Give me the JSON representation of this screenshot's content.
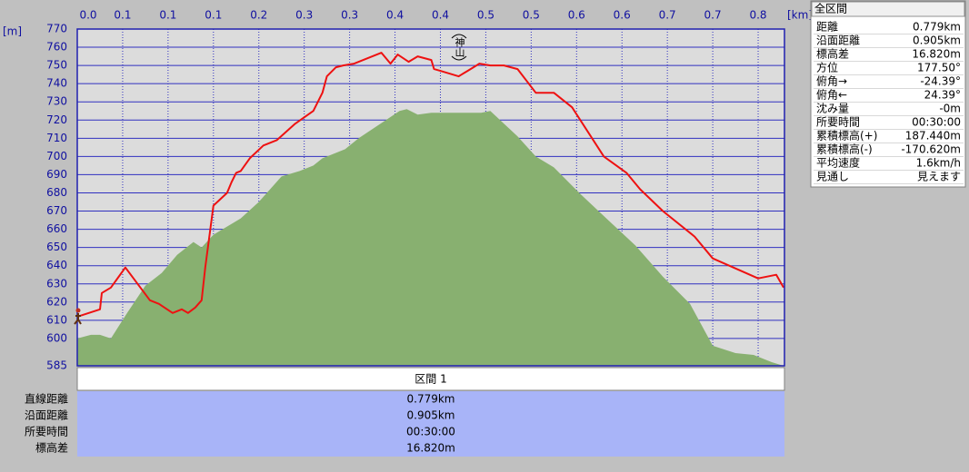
{
  "chart_data": {
    "type": "elevation-profile",
    "x_unit": "[km]",
    "y_unit": "[m]",
    "annotation": "神山",
    "xlim": [
      0,
      0.779
    ],
    "ylim": [
      585,
      770
    ],
    "xticks": [
      {
        "value": 0,
        "label": "0.0"
      },
      {
        "value": 0.05,
        "label": "0.1"
      },
      {
        "value": 0.1,
        "label": "0.1"
      },
      {
        "value": 0.15,
        "label": "0.1"
      },
      {
        "value": 0.2,
        "label": "0.2"
      },
      {
        "value": 0.25,
        "label": "0.3"
      },
      {
        "value": 0.3,
        "label": "0.3"
      },
      {
        "value": 0.35,
        "label": "0.4"
      },
      {
        "value": 0.4,
        "label": "0.4"
      },
      {
        "value": 0.45,
        "label": "0.5"
      },
      {
        "value": 0.5,
        "label": "0.5"
      },
      {
        "value": 0.55,
        "label": "0.6"
      },
      {
        "value": 0.6,
        "label": "0.6"
      },
      {
        "value": 0.65,
        "label": "0.7"
      },
      {
        "value": 0.7,
        "label": "0.7"
      },
      {
        "value": 0.75,
        "label": "0.8"
      }
    ],
    "yticks": [
      585,
      600,
      610,
      620,
      630,
      640,
      650,
      660,
      670,
      680,
      690,
      700,
      710,
      720,
      730,
      740,
      750,
      760,
      770
    ],
    "grid": true,
    "terrain": {
      "color": "#88b070",
      "x": [
        0,
        0.015,
        0.025,
        0.037,
        0.055,
        0.075,
        0.093,
        0.11,
        0.128,
        0.137,
        0.15,
        0.18,
        0.2,
        0.225,
        0.245,
        0.26,
        0.27,
        0.295,
        0.31,
        0.34,
        0.355,
        0.363,
        0.375,
        0.39,
        0.405,
        0.42,
        0.435,
        0.445,
        0.455,
        0.47,
        0.485,
        0.505,
        0.525,
        0.555,
        0.585,
        0.615,
        0.645,
        0.675,
        0.7,
        0.725,
        0.745,
        0.765,
        0.778
      ],
      "values": [
        600,
        602,
        602,
        600,
        614,
        629,
        636,
        646,
        653,
        650,
        657,
        666,
        675,
        689,
        692,
        695,
        699,
        704,
        710,
        720,
        725,
        726,
        723,
        724,
        724,
        724,
        724,
        724,
        725,
        718,
        711,
        700,
        694,
        679,
        665,
        651,
        634,
        619,
        596,
        592,
        591,
        587,
        585
      ]
    },
    "route": {
      "color": "#ee1111",
      "x": [
        0,
        0.025,
        0.027,
        0.037,
        0.053,
        0.08,
        0.09,
        0.105,
        0.115,
        0.122,
        0.13,
        0.137,
        0.141,
        0.15,
        0.165,
        0.17,
        0.175,
        0.18,
        0.19,
        0.205,
        0.22,
        0.24,
        0.26,
        0.27,
        0.275,
        0.285,
        0.293,
        0.305,
        0.335,
        0.345,
        0.353,
        0.365,
        0.375,
        0.39,
        0.393,
        0.4,
        0.42,
        0.43,
        0.443,
        0.455,
        0.47,
        0.485,
        0.505,
        0.525,
        0.545,
        0.58,
        0.605,
        0.62,
        0.645,
        0.68,
        0.7,
        0.75,
        0.77,
        0.778
      ],
      "values": [
        612,
        616,
        625,
        628,
        639,
        621,
        619,
        614,
        616,
        614,
        617,
        621,
        639,
        673,
        680,
        686,
        691,
        692,
        699,
        706,
        709,
        718,
        725,
        735,
        744,
        749,
        750,
        751,
        757,
        751,
        756,
        752,
        755,
        753,
        748,
        747,
        744,
        747,
        751,
        750,
        750,
        748,
        735,
        735,
        727,
        700,
        691,
        682,
        670,
        656,
        644,
        633,
        635,
        628
      ]
    }
  },
  "section_table": {
    "header": "区間 1",
    "rows": [
      [
        "直線距離",
        "0.779km"
      ],
      [
        "沿面距離",
        "0.905km"
      ],
      [
        "所要時間",
        "00:30:00"
      ],
      [
        "標高差",
        "16.820m"
      ]
    ]
  },
  "summary": {
    "title": "全区間",
    "rows": [
      [
        "距離",
        "0.779km"
      ],
      [
        "沿面距離",
        "0.905km"
      ],
      [
        "標高差",
        "16.820m"
      ],
      [
        "方位",
        "177.50°"
      ],
      [
        "俯角→",
        "-24.39°"
      ],
      [
        "俯角←",
        "24.39°"
      ],
      [
        "沈み量",
        "-0m"
      ],
      [
        "所要時間",
        "00:30:00"
      ],
      [
        "累積標高(+)",
        "187.440m"
      ],
      [
        "累積標高(-)",
        "-170.620m"
      ],
      [
        "平均速度",
        "1.6km/h"
      ],
      [
        "見通し",
        "見えます"
      ]
    ]
  }
}
